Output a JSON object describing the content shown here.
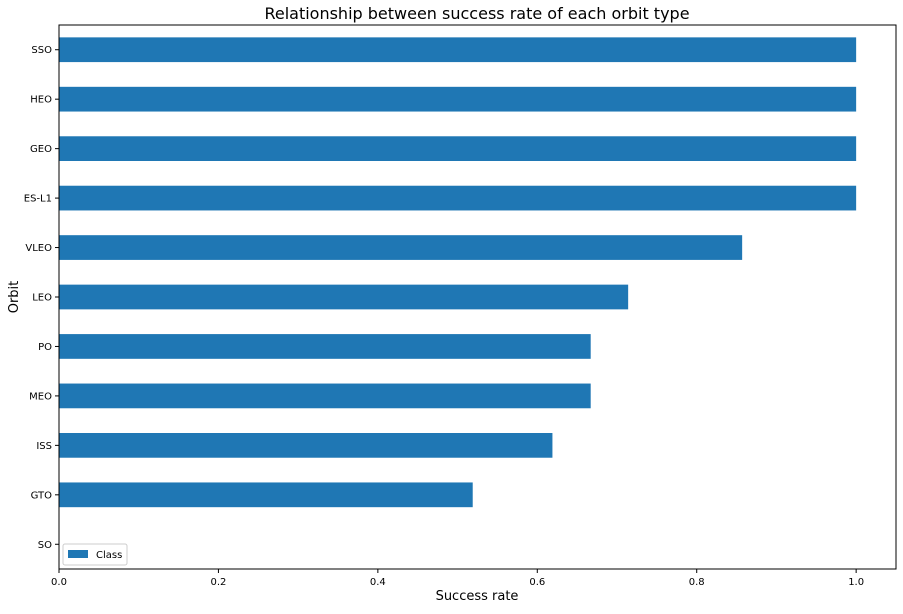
{
  "chart_data": {
    "type": "bar",
    "orientation": "horizontal",
    "title": "Relationship between success rate of each orbit type",
    "xlabel": "Success rate",
    "ylabel": "Orbit",
    "xlim": [
      0.0,
      1.05
    ],
    "x_ticks": [
      "0.0",
      "0.2",
      "0.4",
      "0.6",
      "0.8",
      "1.0"
    ],
    "x_tick_values": [
      0.0,
      0.2,
      0.4,
      0.6,
      0.8,
      1.0
    ],
    "grid": false,
    "legend_position": "lower-left",
    "categories": [
      "SSO",
      "HEO",
      "GEO",
      "ES-L1",
      "VLEO",
      "LEO",
      "PO",
      "MEO",
      "ISS",
      "GTO",
      "SO"
    ],
    "series": [
      {
        "name": "Class",
        "color": "#1f77b4",
        "values": [
          1.0,
          1.0,
          1.0,
          1.0,
          0.857,
          0.714,
          0.667,
          0.667,
          0.619,
          0.519,
          0.0
        ]
      }
    ]
  }
}
